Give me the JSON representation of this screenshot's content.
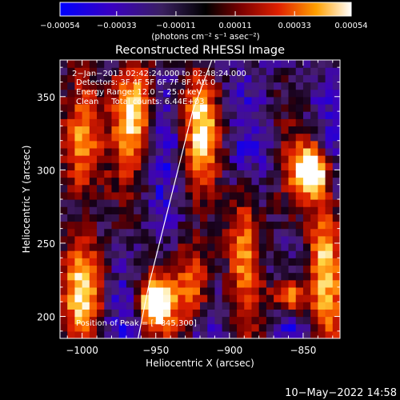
{
  "chart_data": {
    "type": "heatmap",
    "title": "Reconstructed RHESSI Image",
    "xlabel": "Heliocentric X (arcsec)",
    "ylabel": "Heliocentric Y (arcsec)",
    "xlim": [
      -1015,
      -825
    ],
    "ylim": [
      185,
      375
    ],
    "x_ticks": [
      -1000,
      -950,
      -900,
      -850
    ],
    "y_ticks": [
      200,
      250,
      300,
      350
    ],
    "x_tick_labels": [
      "−1000",
      "−950",
      "−900",
      "−850"
    ],
    "y_tick_labels": [
      "200",
      "250",
      "300",
      "350"
    ],
    "colorbar": {
      "min": -0.00054,
      "max": 0.00054,
      "ticks": [
        -0.00054,
        -0.00033,
        -0.00011,
        0.00011,
        0.00033,
        0.00054
      ],
      "tick_labels": [
        "−0.00054",
        "−0.00033",
        "−0.00011",
        "0.00011",
        "0.00033",
        "0.00054"
      ],
      "units_label": "(photons cm⁻² s⁻¹ asec⁻²)"
    },
    "annotations": [
      "2−Jan−2013 02:42:24.000 to 02:48:24.000",
      "Detectors: 3F 4F 5F 6F 7F 8F, Att 0",
      "Energy Range: 12.0 − 25.0 keV",
      "Clean     Total counts: 6.44E+03"
    ],
    "peak_label": "Position of Peak = [−845,300]",
    "peak_position": [
      -845,
      300
    ],
    "limb_curve": [
      [
        -962,
        185
      ],
      [
        -955,
        220
      ],
      [
        -945,
        260
      ],
      [
        -935,
        300
      ],
      [
        -925,
        340
      ],
      [
        -912,
        375
      ]
    ],
    "bright_sources": [
      {
        "x": -845,
        "y": 300,
        "intensity": 1.0,
        "sx": 8,
        "sy": 12
      },
      {
        "x": -950,
        "y": 210,
        "intensity": 0.85,
        "sx": 8,
        "sy": 12
      },
      {
        "x": -860,
        "y": 215,
        "intensity": 0.62,
        "sx": 8,
        "sy": 9
      },
      {
        "x": -1000,
        "y": 320,
        "intensity": 0.7,
        "sx": 9,
        "sy": 30
      },
      {
        "x": -965,
        "y": 340,
        "intensity": 0.6,
        "sx": 9,
        "sy": 25
      },
      {
        "x": -920,
        "y": 330,
        "intensity": 0.58,
        "sx": 8,
        "sy": 26
      },
      {
        "x": -890,
        "y": 250,
        "intensity": 0.5,
        "sx": 8,
        "sy": 30
      },
      {
        "x": -835,
        "y": 240,
        "intensity": 0.6,
        "sx": 8,
        "sy": 35
      },
      {
        "x": -1000,
        "y": 220,
        "intensity": 0.6,
        "sx": 10,
        "sy": 22
      },
      {
        "x": -925,
        "y": 220,
        "intensity": 0.5,
        "sx": 9,
        "sy": 20
      }
    ],
    "colors": {
      "background": "#000000",
      "low": "#0000ff",
      "mid": "#5a2a8a",
      "high": "#ffffff",
      "limb_line": "#ffffff"
    }
  },
  "footer": {
    "timestamp": "10−May−2022 14:58"
  }
}
